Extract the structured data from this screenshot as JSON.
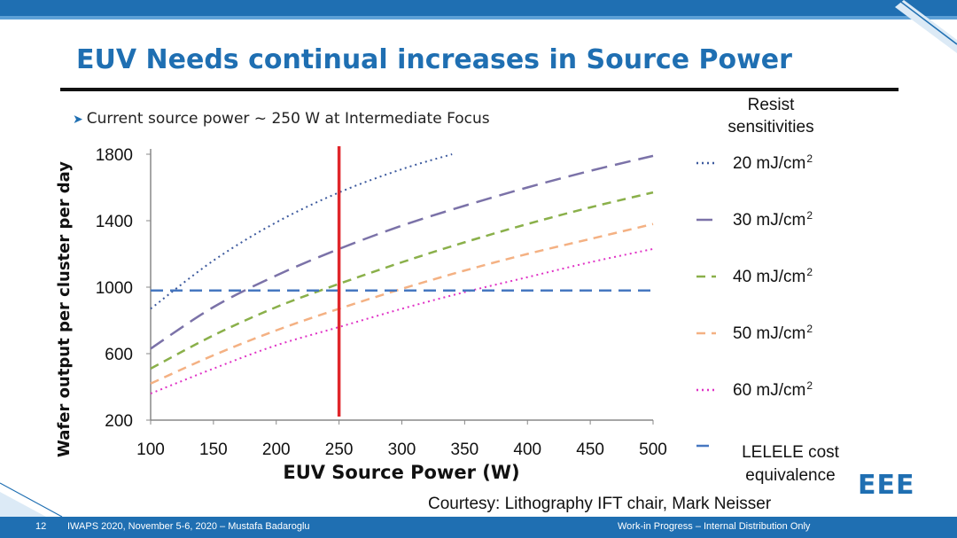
{
  "slide": {
    "title": "EUV Needs continual increases in Source Power",
    "bullet": "Current source power ~ 250 W at Intermediate Focus",
    "courtesy": "Courtesy: Lithography IFT chair, Mark Neisser",
    "logo_text": "EEE",
    "footer": {
      "page": "12",
      "conference": "IWAPS 2020, November 5-6, 2020 – Mustafa Badaroglu",
      "status": "Work-in Progress – Internal Distribution Only"
    },
    "colors": {
      "brand_blue": "#1f6fb2",
      "footer_blue": "#1f6fb2"
    }
  },
  "chart_data": {
    "type": "line",
    "title": "",
    "xlabel": "EUV Source Power (W)",
    "ylabel": "Wafer output per cluster per day",
    "xlim": [
      100,
      500
    ],
    "ylim": [
      200,
      1800
    ],
    "x_ticks": [
      "100",
      "150",
      "200",
      "250",
      "300",
      "350",
      "400",
      "450",
      "500"
    ],
    "y_ticks": [
      "200",
      "600",
      "1000",
      "1400",
      "1800"
    ],
    "legend_title": "Resist sensitivities",
    "legend_placement": "right",
    "reference_line": {
      "x": 250,
      "color": "#e0262b"
    },
    "series": [
      {
        "name": "20 mJ/cm",
        "sup": "2",
        "color": "#3d5a9e",
        "dash": "dot",
        "x": [
          100,
          150,
          200,
          250,
          300,
          340
        ],
        "y": [
          870,
          1160,
          1390,
          1570,
          1710,
          1800
        ]
      },
      {
        "name": "30 mJ/cm",
        "sup": "2",
        "color": "#7b72a8",
        "dash": "longdash",
        "x": [
          100,
          150,
          200,
          250,
          300,
          350,
          400,
          450,
          500
        ],
        "y": [
          630,
          880,
          1070,
          1230,
          1370,
          1490,
          1600,
          1700,
          1790
        ]
      },
      {
        "name": "40 mJ/cm",
        "sup": "2",
        "color": "#8ab04a",
        "dash": "dash",
        "x": [
          100,
          150,
          200,
          250,
          300,
          350,
          400,
          450,
          500
        ],
        "y": [
          510,
          710,
          880,
          1020,
          1150,
          1270,
          1380,
          1480,
          1570
        ]
      },
      {
        "name": "50 mJ/cm",
        "sup": "2",
        "color": "#f4b183",
        "dash": "dash",
        "x": [
          100,
          150,
          200,
          250,
          300,
          350,
          400,
          450,
          500
        ],
        "y": [
          420,
          590,
          740,
          870,
          990,
          1100,
          1200,
          1290,
          1380
        ]
      },
      {
        "name": "60 mJ/cm",
        "sup": "2",
        "color": "#e033c6",
        "dash": "dot",
        "x": [
          100,
          150,
          200,
          250,
          300,
          350,
          400,
          450,
          500
        ],
        "y": [
          360,
          510,
          650,
          760,
          870,
          970,
          1060,
          1150,
          1230
        ]
      },
      {
        "name": "LELELE cost equivalence",
        "name_lines": [
          "LELELE cost",
          "equivalence"
        ],
        "color": "#4677c0",
        "dash": "bigdash",
        "x": [
          100,
          500
        ],
        "y": [
          980,
          980
        ]
      }
    ]
  }
}
